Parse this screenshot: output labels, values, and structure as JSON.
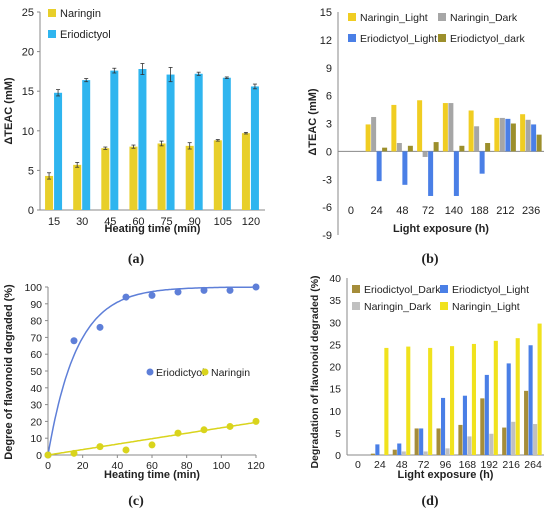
{
  "colors": {
    "naringin": "#e8cf2a",
    "eriodictyol": "#2fb5ef",
    "naringin_light": "#f0cd22",
    "naringin_dark": "#a6a6a6",
    "eriodictyol_light": "#4a7fe6",
    "eriodictyol_dark": "#9c8f2c",
    "c_eriodictyol": "#5e7fd8",
    "c_naringin": "#d9d41c",
    "d_eriodictyol_dark": "#a58d3a",
    "d_eriodictyol_light": "#4a7fe6",
    "d_naringin_dark": "#c0c0c0",
    "d_naringin_light": "#f0e21e"
  },
  "chart_data": [
    {
      "id": "a",
      "panel_label": "(a)",
      "type": "bar",
      "xlabel": "Heating time (min)",
      "ylabel": "ΔTEAC (mM)",
      "ylim": [
        0,
        25
      ],
      "yticks": [
        0,
        5,
        10,
        15,
        20,
        25
      ],
      "categories": [
        "15",
        "30",
        "45",
        "60",
        "75",
        "90",
        "105",
        "120"
      ],
      "legend_position": "top-left",
      "series": [
        {
          "name": "Naringin",
          "color_key": "naringin",
          "values": [
            4.3,
            5.7,
            7.8,
            8.0,
            8.4,
            8.1,
            8.8,
            9.7
          ],
          "errors": [
            0.4,
            0.3,
            0.15,
            0.2,
            0.3,
            0.4,
            0.1,
            0.1
          ]
        },
        {
          "name": "Eriodictyol",
          "color_key": "eriodictyol",
          "values": [
            14.8,
            16.4,
            17.6,
            17.8,
            17.1,
            17.2,
            16.7,
            15.6
          ],
          "errors": [
            0.4,
            0.2,
            0.3,
            0.7,
            0.9,
            0.2,
            0.1,
            0.3
          ]
        }
      ]
    },
    {
      "id": "b",
      "panel_label": "(b)",
      "type": "bar",
      "xlabel": "Light exposure (h)",
      "ylabel": "ΔTEAC (mM)",
      "ylim": [
        -9,
        15
      ],
      "yticks": [
        -9,
        -6,
        -3,
        0,
        3,
        6,
        9,
        12,
        15
      ],
      "categories": [
        "0",
        "24",
        "48",
        "72",
        "140",
        "188",
        "212",
        "236"
      ],
      "legend_position": "top",
      "series": [
        {
          "name": "Naringin_Light",
          "color_key": "naringin_light",
          "values": [
            0,
            2.9,
            5.0,
            5.5,
            5.2,
            4.4,
            3.6,
            4.0
          ]
        },
        {
          "name": "Naringin_Dark",
          "color_key": "naringin_dark",
          "values": [
            0,
            3.7,
            0.9,
            -0.6,
            5.2,
            2.7,
            3.6,
            3.4
          ]
        },
        {
          "name": "Eriodictyol_Light",
          "color_key": "eriodictyol_light",
          "values": [
            0,
            -3.2,
            -3.6,
            -4.8,
            -4.8,
            -2.4,
            3.5,
            2.9
          ]
        },
        {
          "name": "Eriodictyol_dark",
          "color_key": "eriodictyol_dark",
          "values": [
            0,
            0.4,
            0.6,
            1.0,
            0.6,
            0.9,
            3.0,
            1.8
          ]
        }
      ]
    },
    {
      "id": "c",
      "panel_label": "(c)",
      "type": "scatter",
      "xlabel": "Heating time (min)",
      "ylabel": "Degree of flavonoid degraded (%)",
      "xlim": [
        0,
        120
      ],
      "xticks": [
        0,
        20,
        40,
        60,
        80,
        100,
        120
      ],
      "ylim": [
        0,
        100
      ],
      "yticks": [
        0,
        10,
        20,
        30,
        40,
        50,
        60,
        70,
        80,
        90,
        100
      ],
      "legend_position": "middle-right",
      "series": [
        {
          "name": "Eriodictyol",
          "color_key": "c_eriodictyol",
          "x": [
            0,
            15,
            30,
            45,
            60,
            75,
            90,
            105,
            120
          ],
          "y": [
            0,
            68,
            76,
            94,
            95,
            97,
            98,
            98,
            100
          ],
          "fit": "exponential-rise",
          "fit_plateau": 100,
          "fit_rate": 0.06
        },
        {
          "name": "Naringin",
          "color_key": "c_naringin",
          "x": [
            0,
            15,
            30,
            45,
            60,
            75,
            90,
            105,
            120
          ],
          "y": [
            0,
            1,
            5,
            3,
            6,
            13,
            15,
            17,
            20
          ],
          "fit": "linear",
          "fit_slope": 0.162,
          "fit_intercept": 0
        }
      ]
    },
    {
      "id": "d",
      "panel_label": "(d)",
      "type": "bar",
      "xlabel": "Light exposure (h)",
      "ylabel": "Degradation of flavonoid degraded (%)",
      "ylim": [
        0,
        40
      ],
      "yticks": [
        0,
        5,
        10,
        15,
        20,
        25,
        30,
        35,
        40
      ],
      "categories": [
        "0",
        "24",
        "48",
        "72",
        "96",
        "168",
        "192",
        "216",
        "264"
      ],
      "legend_position": "top",
      "series": [
        {
          "name": "Eriodictyol_Dark",
          "color_key": "d_eriodictyol_dark",
          "values": [
            0,
            0.3,
            1.2,
            6.0,
            6.0,
            6.8,
            12.8,
            6.2,
            14.5
          ]
        },
        {
          "name": "Eriodictyol_Light",
          "color_key": "d_eriodictyol_light",
          "values": [
            0,
            2.4,
            2.6,
            6.0,
            12.9,
            13.4,
            18.1,
            20.7,
            24.8
          ]
        },
        {
          "name": "Naringin_Dark",
          "color_key": "d_naringin_dark",
          "values": [
            0,
            0.2,
            0.8,
            0.8,
            1.5,
            4.2,
            4.8,
            7.5,
            7.0
          ]
        },
        {
          "name": "Naringin_Light",
          "color_key": "d_naringin_light",
          "values": [
            0,
            24.2,
            24.5,
            24.2,
            24.6,
            25.1,
            25.8,
            26.4,
            29.7
          ]
        }
      ]
    }
  ]
}
